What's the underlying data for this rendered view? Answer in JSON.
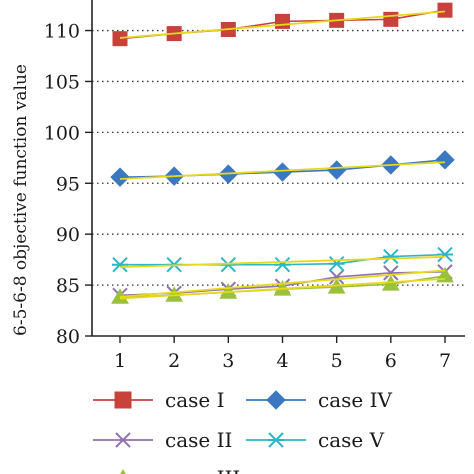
{
  "chart_data": {
    "type": "line",
    "ylabel": "6-5-6-8 objective function value",
    "xlabel": "",
    "x": [
      1,
      2,
      3,
      4,
      5,
      6,
      7
    ],
    "ylim": [
      80,
      113
    ],
    "yticks": [
      80,
      85,
      90,
      95,
      100,
      105,
      110
    ],
    "grid": "horizontal dotted",
    "legend_position": "bottom",
    "trend_line_color": "#e8d81a",
    "series": [
      {
        "name": "case I",
        "marker": "square",
        "color": "#c8413b",
        "values": [
          109.2,
          109.7,
          110.1,
          110.9,
          111.0,
          111.1,
          112.0
        ]
      },
      {
        "name": "case II",
        "marker": "x",
        "color": "#8e73b0",
        "values": [
          84.0,
          84.2,
          84.6,
          84.9,
          85.8,
          86.2,
          86.3
        ]
      },
      {
        "name": "case III",
        "marker": "triangle",
        "color": "#9ac13c",
        "values": [
          83.8,
          84.0,
          84.3,
          84.6,
          84.8,
          85.1,
          85.9
        ]
      },
      {
        "name": "case IV",
        "marker": "diamond",
        "color": "#3a78c2",
        "values": [
          95.6,
          95.7,
          95.9,
          96.1,
          96.3,
          96.8,
          97.3
        ]
      },
      {
        "name": "case V",
        "marker": "asterisk",
        "color": "#2bb7c9",
        "values": [
          87.0,
          87.0,
          87.0,
          87.0,
          87.1,
          87.8,
          88.0
        ]
      }
    ]
  }
}
